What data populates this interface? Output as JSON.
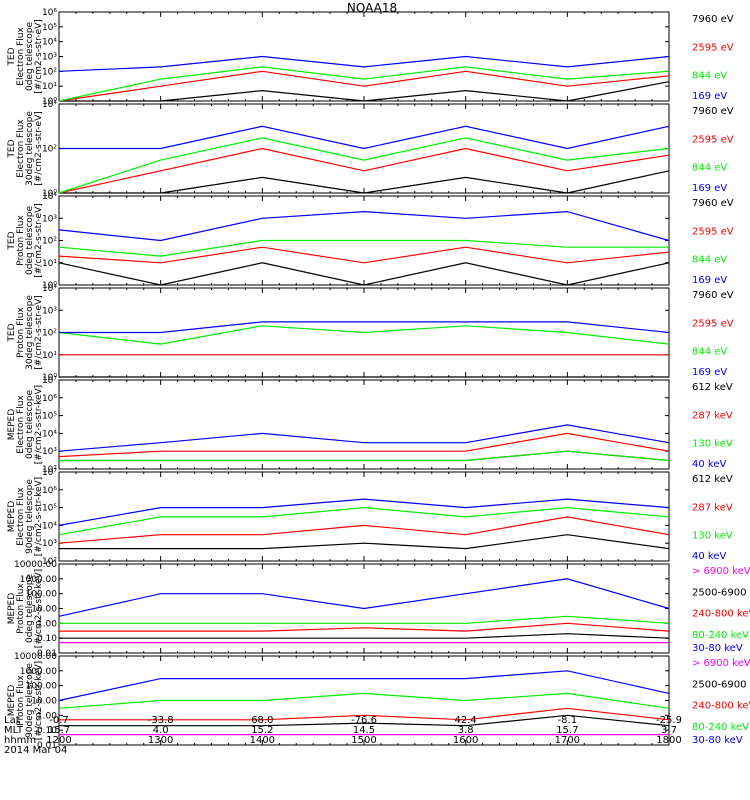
{
  "title": "NOAA18",
  "date_label": "2014 Mar 04",
  "bottom_axis": {
    "row_labels": [
      "Lat",
      "MLT",
      "hhmm"
    ],
    "columns": [
      {
        "lat": "-0.7",
        "mlt": "15.7",
        "hhmm": "1200"
      },
      {
        "lat": "-33.8",
        "mlt": "4.0",
        "hhmm": "1300"
      },
      {
        "lat": "68.0",
        "mlt": "15.2",
        "hhmm": "1400"
      },
      {
        "lat": "-76.6",
        "mlt": "14.5",
        "hhmm": "1500"
      },
      {
        "lat": "42.4",
        "mlt": "3.8",
        "hhmm": "1600"
      },
      {
        "lat": "-8.1",
        "mlt": "15.7",
        "hhmm": "1700"
      },
      {
        "lat": "-25.9",
        "mlt": "3.7",
        "hhmm": "1800"
      }
    ]
  },
  "colors": {
    "blue": "#0000ff",
    "red": "#ff0000",
    "green": "#00ee00",
    "black": "#000000",
    "magenta": "#ff00ff"
  },
  "chart_data": [
    {
      "type": "line",
      "ylabel": "TED\nElectron Flux\n0deg telescope\n[#/cm2-s-str-eV]",
      "yscale": "log",
      "yticks": [
        "10⁰",
        "10¹",
        "10²",
        "10³",
        "10⁴",
        "10⁵",
        "10⁶"
      ],
      "x": [
        "1200",
        "1300",
        "1400",
        "1500",
        "1600",
        "1700",
        "1800"
      ],
      "series": [
        {
          "name": "7960 eV",
          "color": "#000000",
          "values": [
            1,
            1,
            5,
            1,
            5,
            1,
            20
          ]
        },
        {
          "name": "2595 eV",
          "color": "#ff0000",
          "values": [
            1,
            10,
            100,
            10,
            100,
            10,
            50
          ]
        },
        {
          "name": "844 eV",
          "color": "#00ee00",
          "values": [
            1,
            30,
            200,
            30,
            200,
            30,
            100
          ]
        },
        {
          "name": "169 eV",
          "color": "#0000ff",
          "values": [
            100,
            200,
            1000,
            200,
            1000,
            200,
            1000
          ]
        }
      ]
    },
    {
      "type": "line",
      "ylabel": "TED\nElectron Flux\n30deg telescope\n[#/cm2-s-str-eV]",
      "yscale": "log",
      "yticks": [
        "10⁰",
        "10²",
        "10⁴"
      ],
      "x": [
        "1200",
        "1300",
        "1400",
        "1500",
        "1600",
        "1700",
        "1800"
      ],
      "series": [
        {
          "name": "7960 eV",
          "color": "#000000",
          "values": [
            1,
            1,
            5,
            1,
            5,
            1,
            10
          ]
        },
        {
          "name": "2595 eV",
          "color": "#ff0000",
          "values": [
            1,
            10,
            100,
            10,
            100,
            10,
            50
          ]
        },
        {
          "name": "844 eV",
          "color": "#00ee00",
          "values": [
            1,
            30,
            300,
            30,
            300,
            30,
            100
          ]
        },
        {
          "name": "169 eV",
          "color": "#0000ff",
          "values": [
            100,
            100,
            1000,
            100,
            1000,
            100,
            1000
          ]
        }
      ]
    },
    {
      "type": "line",
      "ylabel": "TED\nProton Flux\n0deg telescope\n[#/cm2-s-str-eV]",
      "yscale": "log",
      "yticks": [
        "10⁰",
        "10¹",
        "10²",
        "10³",
        "10⁴"
      ],
      "x": [
        "1200",
        "1300",
        "1400",
        "1500",
        "1600",
        "1700",
        "1800"
      ],
      "series": [
        {
          "name": "7960 eV",
          "color": "#000000",
          "values": [
            10,
            1,
            10,
            1,
            10,
            1,
            10
          ]
        },
        {
          "name": "2595 eV",
          "color": "#ff0000",
          "values": [
            20,
            10,
            50,
            10,
            50,
            10,
            30
          ]
        },
        {
          "name": "844 eV",
          "color": "#00ee00",
          "values": [
            50,
            20,
            100,
            100,
            100,
            50,
            50
          ]
        },
        {
          "name": "169 eV",
          "color": "#0000ff",
          "values": [
            300,
            100,
            1000,
            2000,
            1000,
            2000,
            100
          ]
        }
      ]
    },
    {
      "type": "line",
      "ylabel": "TED\nProton Flux\n30deg telescope\n[#/cm2-s-str-eV]",
      "yscale": "log",
      "yticks": [
        "10⁰",
        "10¹",
        "10²",
        "10³",
        "10⁴"
      ],
      "x": [
        "1200",
        "1300",
        "1400",
        "1500",
        "1600",
        "1700",
        "1800"
      ],
      "series": [
        {
          "name": "7960 eV",
          "color": "#000000",
          "values": [
            1,
            1,
            1,
            1,
            1,
            1,
            1
          ]
        },
        {
          "name": "2595 eV",
          "color": "#ff0000",
          "values": [
            10,
            10,
            10,
            10,
            10,
            10,
            10
          ]
        },
        {
          "name": "844 eV",
          "color": "#00ee00",
          "values": [
            100,
            30,
            200,
            100,
            200,
            100,
            30
          ]
        },
        {
          "name": "169 eV",
          "color": "#0000ff",
          "values": [
            100,
            100,
            300,
            300,
            300,
            300,
            100
          ]
        }
      ]
    },
    {
      "type": "line",
      "ylabel": "MEPED\nElectron Flux\n0deg telescope\n[#/cm2-s-str-keV]",
      "yscale": "log",
      "yticks": [
        "10²",
        "10³",
        "10⁴",
        "10⁵",
        "10⁶",
        "10⁷"
      ],
      "x": [
        "1200",
        "1300",
        "1400",
        "1500",
        "1600",
        "1700",
        "1800"
      ],
      "series": [
        {
          "name": "612 keV",
          "color": "#000000",
          "values": [
            300,
            300,
            300,
            300,
            300,
            1000,
            300
          ]
        },
        {
          "name": "287 keV",
          "color": "#ff0000",
          "values": [
            500,
            1000,
            1000,
            1000,
            1000,
            10000,
            1000
          ]
        },
        {
          "name": "130 keV",
          "color": "#00ee00",
          "values": [
            300,
            300,
            300,
            300,
            300,
            1000,
            300
          ]
        },
        {
          "name": "40 keV",
          "color": "#0000ff",
          "values": [
            1000,
            3000,
            10000,
            3000,
            3000,
            30000,
            3000
          ]
        }
      ]
    },
    {
      "type": "line",
      "ylabel": "MEPED\nElectron Flux\n90deg telescope\n[#/cm2-s-str-keV]",
      "yscale": "log",
      "yticks": [
        "10²",
        "10³",
        "10⁴",
        "10⁵",
        "10⁶",
        "10⁷"
      ],
      "x": [
        "1200",
        "1300",
        "1400",
        "1500",
        "1600",
        "1700",
        "1800"
      ],
      "series": [
        {
          "name": "612 keV",
          "color": "#000000",
          "values": [
            500,
            500,
            500,
            1000,
            500,
            3000,
            500
          ]
        },
        {
          "name": "287 keV",
          "color": "#ff0000",
          "values": [
            1000,
            3000,
            3000,
            10000,
            3000,
            30000,
            3000
          ]
        },
        {
          "name": "130 keV",
          "color": "#00ee00",
          "values": [
            3000,
            30000,
            30000,
            100000,
            30000,
            100000,
            30000
          ]
        },
        {
          "name": "40 keV",
          "color": "#0000ff",
          "values": [
            10000,
            100000,
            100000,
            300000,
            100000,
            300000,
            100000
          ]
        }
      ]
    },
    {
      "type": "line",
      "ylabel": "MEPED\nProton Flux\n0deg telescope\n[#/cm2-s-str-keV]",
      "yscale": "log",
      "yticks": [
        "0.01",
        "0.10",
        "1.00",
        "10.00",
        "100.00",
        "1000.00",
        "10000.00"
      ],
      "x": [
        "1200",
        "1300",
        "1400",
        "1500",
        "1600",
        "1700",
        "1800"
      ],
      "series": [
        {
          "name": "> 6900 keV",
          "color": "#ff00ff",
          "values": [
            0.05,
            0.05,
            0.05,
            0.05,
            0.05,
            0.05,
            0.05
          ]
        },
        {
          "name": "2500-6900",
          "color": "#000000",
          "values": [
            0.1,
            0.1,
            0.1,
            0.1,
            0.1,
            0.2,
            0.1
          ]
        },
        {
          "name": "240-800 keV",
          "color": "#ff0000",
          "values": [
            0.3,
            0.3,
            0.3,
            0.5,
            0.3,
            1,
            0.3
          ]
        },
        {
          "name": "80-240 keV",
          "color": "#00ee00",
          "values": [
            1,
            1,
            1,
            1,
            1,
            3,
            1
          ]
        },
        {
          "name": "30-80 keV",
          "color": "#0000ff",
          "values": [
            3,
            100,
            100,
            10,
            100,
            1000,
            10
          ]
        }
      ]
    },
    {
      "type": "line",
      "ylabel": "MEPED\nProton Flux\n90deg telescope\n[#/cm2-s-str-keV]",
      "yscale": "log",
      "yticks": [
        "0.01",
        "0.10",
        "1.00",
        "10.00",
        "100.00",
        "1000.00",
        "10000.00"
      ],
      "x": [
        "1200",
        "1300",
        "1400",
        "1500",
        "1600",
        "1700",
        "1800"
      ],
      "series": [
        {
          "name": "> 6900 keV",
          "color": "#ff00ff",
          "values": [
            0.05,
            0.05,
            0.05,
            0.05,
            0.05,
            0.05,
            0.05
          ]
        },
        {
          "name": "2500-6900",
          "color": "#000000",
          "values": [
            0.2,
            0.2,
            0.2,
            0.3,
            0.2,
            1,
            0.2
          ]
        },
        {
          "name": "240-800 keV",
          "color": "#ff0000",
          "values": [
            0.5,
            0.5,
            0.5,
            1,
            0.5,
            3,
            0.5
          ]
        },
        {
          "name": "80-240 keV",
          "color": "#00ee00",
          "values": [
            3,
            10,
            10,
            30,
            10,
            30,
            3
          ]
        },
        {
          "name": "30-80 keV",
          "color": "#0000ff",
          "values": [
            10,
            300,
            300,
            300,
            300,
            1000,
            30
          ]
        }
      ]
    }
  ]
}
